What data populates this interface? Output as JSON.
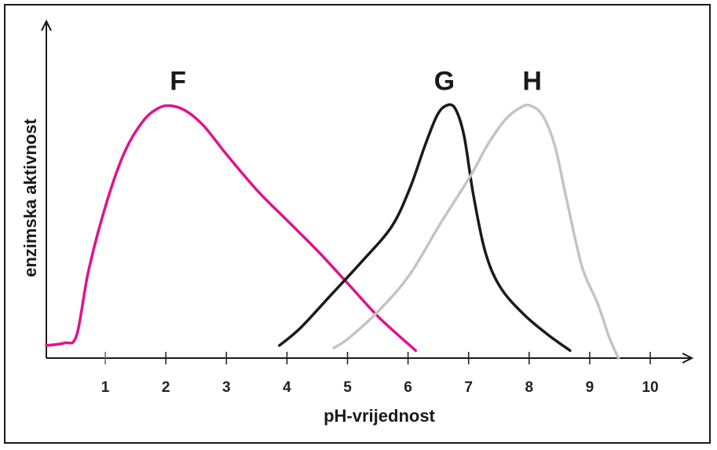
{
  "chart_data": {
    "type": "line",
    "title": "",
    "xlabel": "pH-vrijednost",
    "ylabel": "enzimska  aktivnost",
    "xlim": [
      0,
      10.5
    ],
    "ylim": [
      0,
      1
    ],
    "x_ticks": [
      1,
      2,
      3,
      4,
      5,
      6,
      7,
      8,
      9,
      10
    ],
    "x_tick_labels": [
      "1",
      "2",
      "3",
      "4",
      "5",
      "6",
      "7",
      "8",
      "9",
      "10"
    ],
    "grid": false,
    "legend": "none",
    "series": [
      {
        "name": "F",
        "color": "#e0138c",
        "x": [
          0,
          0.3,
          0.5,
          0.7,
          1.0,
          1.3,
          1.6,
          1.85,
          2.05,
          2.3,
          2.6,
          3.0,
          3.5,
          4.0,
          4.5,
          5.0,
          5.5,
          6.1
        ],
        "y": [
          0.05,
          0.06,
          0.09,
          0.35,
          0.62,
          0.82,
          0.94,
          0.99,
          1.0,
          0.98,
          0.92,
          0.8,
          0.66,
          0.54,
          0.42,
          0.29,
          0.16,
          0.03
        ]
      },
      {
        "name": "G",
        "color": "#1a1a1a",
        "x": [
          3.85,
          4.2,
          4.7,
          5.2,
          5.7,
          6.0,
          6.25,
          6.45,
          6.6,
          6.75,
          6.9,
          7.05,
          7.25,
          7.5,
          7.9,
          8.3,
          8.65
        ],
        "y": [
          0.05,
          0.12,
          0.25,
          0.38,
          0.52,
          0.67,
          0.84,
          0.96,
          1.0,
          0.99,
          0.88,
          0.65,
          0.42,
          0.28,
          0.17,
          0.09,
          0.03
        ]
      },
      {
        "name": "H",
        "color": "#c4c4c4",
        "x": [
          4.75,
          5.0,
          5.5,
          6.0,
          6.5,
          7.0,
          7.3,
          7.6,
          7.85,
          8.0,
          8.2,
          8.4,
          8.6,
          8.85,
          9.1,
          9.3,
          9.45
        ],
        "y": [
          0.04,
          0.08,
          0.19,
          0.33,
          0.53,
          0.72,
          0.85,
          0.95,
          0.995,
          1.0,
          0.96,
          0.84,
          0.62,
          0.36,
          0.22,
          0.08,
          0.0
        ]
      }
    ],
    "annotations": [
      {
        "text": "F",
        "x": 2.2,
        "y_px_hint": "above-peak"
      },
      {
        "text": "G",
        "x": 6.6,
        "y_px_hint": "above-peak"
      },
      {
        "text": "H",
        "x": 8.05,
        "y_px_hint": "above-peak"
      }
    ]
  }
}
